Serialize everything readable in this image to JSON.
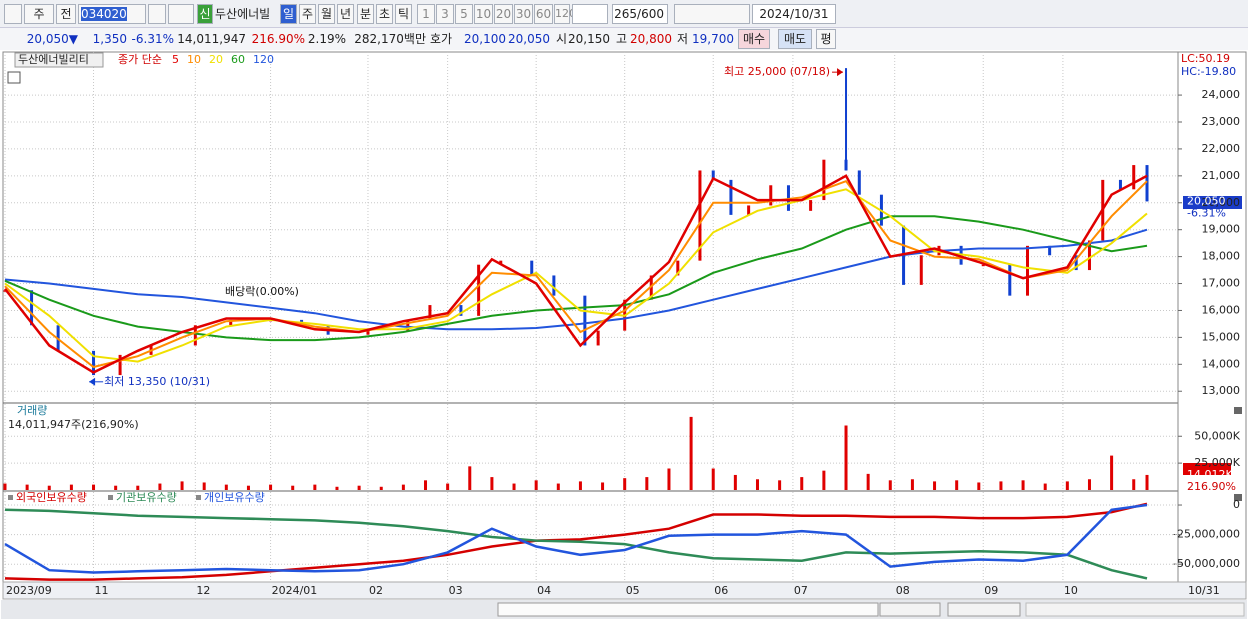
{
  "toolbar": {
    "market": "주",
    "prev": "전",
    "code": "034020",
    "name": "두산에너빌",
    "badge": "신",
    "periods": [
      "일",
      "주",
      "월",
      "년",
      "분",
      "초",
      "틱"
    ],
    "intervals": [
      "1",
      "3",
      "5",
      "10",
      "20",
      "30",
      "60",
      "120"
    ],
    "count": "265/600",
    "date": "2024/10/31"
  },
  "infobar": [
    "20,050▼",
    "1,350",
    "-6.31%",
    "14,011,947",
    "216.90%",
    "2.19%",
    "282,170백만",
    "호가",
    "20,100",
    "20,050",
    "시",
    "20,150",
    "고",
    "20,800",
    "저",
    "19,700",
    "매수",
    "매도",
    "평"
  ],
  "chart_data": [
    {
      "type": "candlestick",
      "name": "두산에너빌리티",
      "legend_title": "종가 단순",
      "lc_label": "LC:50.19",
      "hc_label": "HC:-19.80",
      "last_price": {
        "value": 20050,
        "label": "20,050"
      },
      "last_change": "-6.31%",
      "xlim": [
        0,
        265
      ],
      "xticks": [
        {
          "value": 0,
          "label": "2023/09"
        },
        {
          "value": 20,
          "label": "11"
        },
        {
          "value": 43,
          "label": "12"
        },
        {
          "value": 60,
          "label": "2024/01"
        },
        {
          "value": 82,
          "label": "02"
        },
        {
          "value": 100,
          "label": "03"
        },
        {
          "value": 120,
          "label": "04"
        },
        {
          "value": 140,
          "label": "05"
        },
        {
          "value": 160,
          "label": "06"
        },
        {
          "value": 178,
          "label": "07"
        },
        {
          "value": 201,
          "label": "08"
        },
        {
          "value": 221,
          "label": "09"
        },
        {
          "value": 239,
          "label": "10"
        }
      ],
      "x_end_label": "10/31",
      "ylim": [
        12600,
        25600
      ],
      "yticks": [
        {
          "value": 13000,
          "label": "13,000"
        },
        {
          "value": 14000,
          "label": "14,000"
        },
        {
          "value": 15000,
          "label": "15,000"
        },
        {
          "value": 16000,
          "label": "16,000"
        },
        {
          "value": 17000,
          "label": "17,000"
        },
        {
          "value": 18000,
          "label": "18,000"
        },
        {
          "value": 19000,
          "label": "19,000"
        },
        {
          "value": 20000,
          "label": "20,000"
        },
        {
          "value": 21000,
          "label": "21,000"
        },
        {
          "value": 22000,
          "label": "22,000"
        },
        {
          "value": 23000,
          "label": "23,000"
        },
        {
          "value": 24000,
          "label": "24,000"
        }
      ],
      "grid": true,
      "close": {
        "up_color": "#e00000",
        "down_color": "#1040d0",
        "x": [
          0,
          6,
          12,
          20,
          26,
          33,
          43,
          51,
          60,
          67,
          73,
          82,
          91,
          96,
          103,
          107,
          112,
          119,
          124,
          131,
          134,
          140,
          146,
          152,
          157,
          160,
          164,
          168,
          173,
          177,
          182,
          185,
          190,
          193,
          198,
          203,
          207,
          211,
          216,
          221,
          227,
          231,
          236,
          242,
          245,
          248,
          252,
          255,
          258
        ],
        "values": [
          16750,
          15450,
          14500,
          13600,
          14350,
          14700,
          15450,
          15650,
          15650,
          15450,
          15100,
          15250,
          15650,
          16200,
          15800,
          17700,
          17850,
          17300,
          16550,
          14700,
          15250,
          16400,
          17300,
          17850,
          21200,
          20850,
          19550,
          19900,
          20650,
          19700,
          20100,
          21600,
          21200,
          20300,
          19150,
          16950,
          18050,
          18400,
          17700,
          17700,
          16550,
          18400,
          18050,
          17500,
          18600,
          20850,
          20500,
          21400,
          20050
        ]
      },
      "ma_x": [
        0,
        10,
        20,
        30,
        40,
        50,
        60,
        70,
        80,
        90,
        100,
        110,
        120,
        130,
        140,
        150,
        160,
        170,
        180,
        190,
        200,
        210,
        220,
        230,
        240,
        250,
        258
      ],
      "series": [
        {
          "name": "5",
          "color": "#e00000",
          "values": [
            16800,
            14700,
            13700,
            14500,
            15200,
            15700,
            15700,
            15300,
            15200,
            15600,
            15900,
            17900,
            17000,
            14700,
            16300,
            17800,
            20900,
            20100,
            20100,
            21000,
            18000,
            18300,
            17800,
            17200,
            17600,
            20300,
            21000
          ]
        },
        {
          "name": "10",
          "color": "#ff8c00",
          "values": [
            16900,
            15200,
            13900,
            14300,
            15000,
            15600,
            15700,
            15400,
            15200,
            15500,
            15800,
            17400,
            17300,
            15200,
            16000,
            17500,
            20000,
            20000,
            20200,
            20800,
            18600,
            18000,
            17900,
            17200,
            17500,
            19500,
            20800
          ]
        },
        {
          "name": "20",
          "color": "#f0e000",
          "values": [
            17000,
            15800,
            14300,
            14100,
            14700,
            15400,
            15650,
            15500,
            15300,
            15300,
            15600,
            16600,
            17400,
            16000,
            15800,
            17000,
            18900,
            19700,
            20100,
            20500,
            19500,
            18200,
            18000,
            17600,
            17400,
            18500,
            19600
          ]
        },
        {
          "name": "60",
          "color": "#1a9a1a",
          "values": [
            17100,
            16400,
            15800,
            15400,
            15200,
            15000,
            14900,
            14900,
            15000,
            15200,
            15500,
            15800,
            16000,
            16100,
            16200,
            16600,
            17400,
            17900,
            18300,
            19000,
            19500,
            19500,
            19300,
            19000,
            18600,
            18200,
            18400
          ]
        },
        {
          "name": "120",
          "color": "#2255dd",
          "values": [
            17150,
            17000,
            16800,
            16600,
            16500,
            16300,
            16100,
            15900,
            15600,
            15400,
            15300,
            15300,
            15350,
            15500,
            15700,
            16000,
            16400,
            16800,
            17200,
            17600,
            18000,
            18200,
            18300,
            18300,
            18400,
            18600,
            19000
          ]
        }
      ],
      "annotations": [
        {
          "label": "최고 25,000 (07/18)",
          "x": 190,
          "value": 25000
        },
        {
          "label": "최저 13,350 (10/31)",
          "x": 19,
          "value": 13350
        },
        {
          "label": "배당락(0.00%)"
        }
      ]
    },
    {
      "type": "bar",
      "title": "거래량",
      "subtitle": "14,011,947주(216,90%)",
      "color": "#e00000",
      "x": [
        0,
        5,
        10,
        15,
        20,
        25,
        30,
        35,
        40,
        45,
        50,
        55,
        60,
        65,
        70,
        75,
        80,
        85,
        90,
        95,
        100,
        105,
        110,
        115,
        120,
        125,
        130,
        135,
        140,
        145,
        150,
        155,
        160,
        165,
        170,
        175,
        180,
        185,
        190,
        195,
        200,
        205,
        210,
        215,
        220,
        225,
        230,
        235,
        240,
        245,
        250,
        255,
        258
      ],
      "values": [
        6000,
        5000,
        4000,
        5000,
        5000,
        4000,
        4000,
        6000,
        8000,
        7000,
        5000,
        4000,
        5000,
        4000,
        5000,
        3000,
        4000,
        3000,
        5000,
        9000,
        6000,
        22000,
        12000,
        6000,
        9000,
        6000,
        8000,
        7000,
        11000,
        12000,
        20000,
        68000,
        20000,
        14000,
        10000,
        9000,
        12000,
        18000,
        60000,
        15000,
        9000,
        10000,
        8000,
        9000,
        7000,
        8000,
        9000,
        6000,
        8000,
        10000,
        32000,
        10000,
        14012
      ],
      "ylim": [
        0,
        80000
      ],
      "yticks": [
        {
          "value": 25000,
          "label": "25,000K"
        },
        {
          "value": 50000,
          "label": "50,000K"
        }
      ],
      "last_value": {
        "value": 14012,
        "label": "14,012K"
      },
      "last_ratio": "216.90%"
    },
    {
      "type": "line",
      "x": [
        0,
        10,
        20,
        30,
        40,
        50,
        60,
        70,
        80,
        90,
        100,
        110,
        120,
        130,
        140,
        150,
        160,
        170,
        180,
        190,
        200,
        210,
        220,
        230,
        240,
        250,
        258
      ],
      "series": [
        {
          "name": "외국인보유수량",
          "color": "#d40000",
          "values": [
            -62000000,
            -63000000,
            -63000000,
            -62000000,
            -61000000,
            -59000000,
            -56000000,
            -53000000,
            -50000000,
            -47000000,
            -42000000,
            -35000000,
            -30000000,
            -29000000,
            -25000000,
            -20000000,
            -8000000,
            -8000000,
            -9000000,
            -9000000,
            -10000000,
            -10000000,
            -11000000,
            -11000000,
            -10000000,
            -6000000,
            1000000
          ]
        },
        {
          "name": "기관보유수량",
          "color": "#2e8b57",
          "values": [
            -4000000,
            -5000000,
            -7000000,
            -9000000,
            -10000000,
            -11000000,
            -12000000,
            -13000000,
            -15000000,
            -18000000,
            -22000000,
            -27000000,
            -30000000,
            -31000000,
            -33000000,
            -40000000,
            -45000000,
            -46000000,
            -47000000,
            -40000000,
            -41000000,
            -40000000,
            -39000000,
            -40000000,
            -42000000,
            -55000000,
            -62000000
          ]
        },
        {
          "name": "개인보유수량",
          "color": "#2255dd",
          "values": [
            -33000000,
            -55000000,
            -57000000,
            -56000000,
            -55000000,
            -54000000,
            -55000000,
            -56000000,
            -55000000,
            -50000000,
            -40000000,
            -20000000,
            -35000000,
            -42000000,
            -38000000,
            -26000000,
            -25000000,
            -25000000,
            -22000000,
            -25000000,
            -52000000,
            -48000000,
            -46000000,
            -47000000,
            -42000000,
            -4000000,
            0
          ]
        }
      ],
      "ylim": [
        -65000000,
        11000000
      ],
      "yticks": [
        0,
        {
          "value": -25000000,
          "label": "-25,000,000"
        },
        {
          "value": -50000000,
          "label": "-50,000,000"
        }
      ]
    }
  ]
}
